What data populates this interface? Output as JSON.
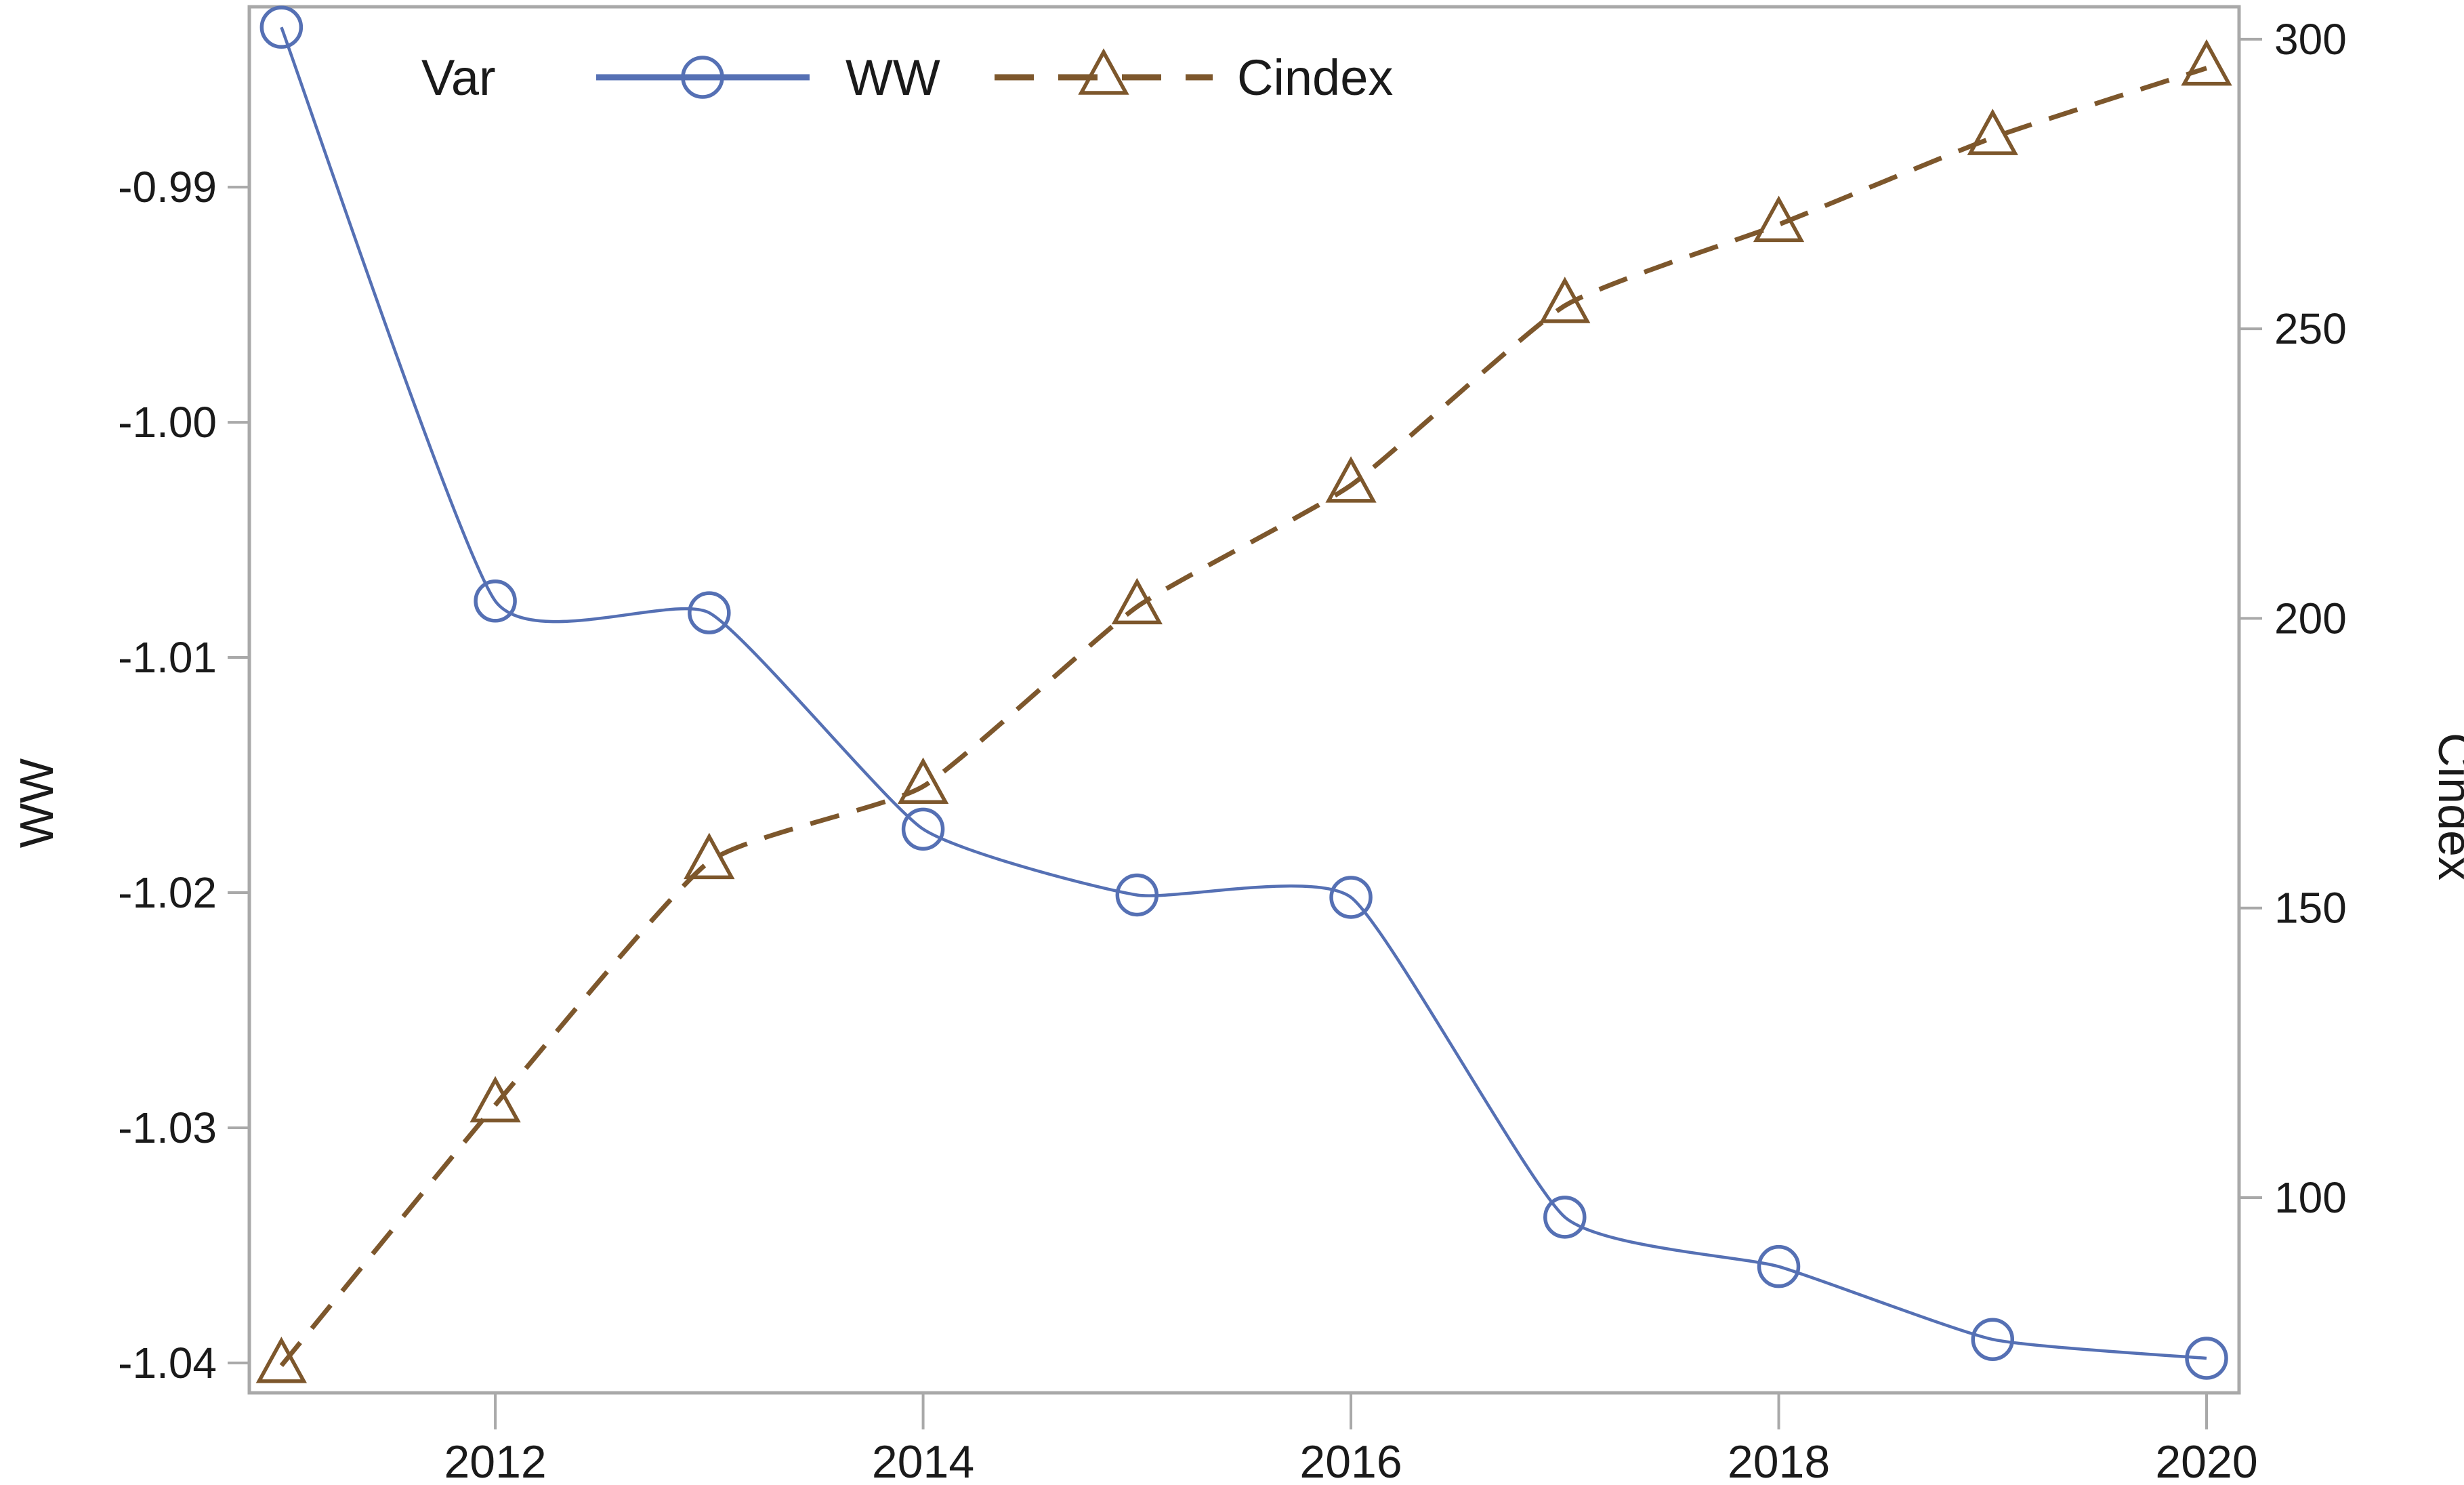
{
  "chart_data": {
    "type": "line",
    "title": "",
    "x": [
      2011,
      2012,
      2013,
      2014,
      2015,
      2016,
      2017,
      2018,
      2019,
      2020
    ],
    "x_axis": {
      "label": "",
      "ticks": [
        2012,
        2014,
        2016,
        2018,
        2020
      ],
      "tick_labels": [
        "2012",
        "2014",
        "2016",
        "2018",
        "2020"
      ],
      "range": [
        2010.85,
        2020.152
      ]
    },
    "y_axis_left": {
      "label": "WW",
      "ticks": [
        -0.99,
        -1.0,
        -1.01,
        -1.02,
        -1.03,
        -1.04
      ],
      "tick_labels": [
        "-0.99",
        "-1.00",
        "-1.01",
        "-1.02",
        "-1.03",
        "-1.04"
      ],
      "range": [
        -1.04127,
        -0.98233
      ]
    },
    "y_axis_right": {
      "label": "Cindex",
      "ticks": [
        100,
        150,
        200,
        250,
        300
      ],
      "tick_labels": [
        "100",
        "150",
        "200",
        "250",
        "300"
      ],
      "range": [
        66.3,
        305.6
      ]
    },
    "series": [
      {
        "name": "WW",
        "axis": "left",
        "color": "#5570b4",
        "marker": "circle",
        "line_style": "solid",
        "values": [
          -0.9832,
          -1.0076,
          -1.0081,
          -1.0173,
          -1.0201,
          -1.0202,
          -1.0338,
          -1.0359,
          -1.039,
          -1.0398
        ]
      },
      {
        "name": "Cindex",
        "axis": "right",
        "color": "#7d572c",
        "marker": "triangle",
        "line_style": "dashed",
        "values": [
          71,
          116,
          158,
          171,
          202,
          223,
          254,
          268,
          283,
          295
        ]
      }
    ],
    "legend": {
      "title": "Var",
      "entries": [
        "WW",
        "Cindex"
      ],
      "position": "top-inside"
    },
    "grid": false,
    "frame_color": "#a9a9a9",
    "text_color": "#1a1a1a"
  }
}
